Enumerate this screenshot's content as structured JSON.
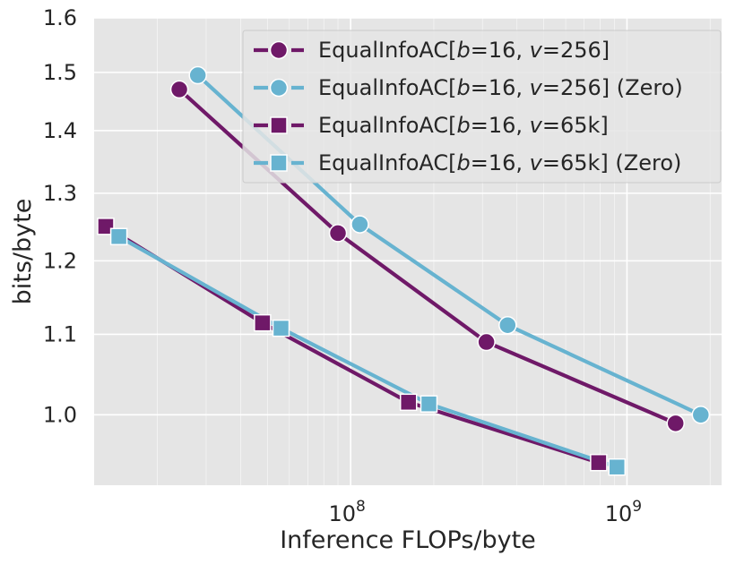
{
  "chart_data": {
    "type": "line",
    "title": "",
    "xlabel": "Inference FLOPs/byte",
    "ylabel": "bits/byte",
    "xscale": "log",
    "yscale": "log",
    "xlim": [
      11800000,
      2200000000
    ],
    "ylim": [
      0.92,
      1.6
    ],
    "x_ticks": [
      {
        "value": 100000000,
        "base": "10",
        "exp": "8"
      },
      {
        "value": 1000000000,
        "base": "10",
        "exp": "9"
      }
    ],
    "y_ticks": [
      {
        "value": 1.0,
        "label": "1.0"
      },
      {
        "value": 1.1,
        "label": "1.1"
      },
      {
        "value": 1.2,
        "label": "1.2"
      },
      {
        "value": 1.3,
        "label": "1.3"
      },
      {
        "value": 1.4,
        "label": "1.4"
      },
      {
        "value": 1.5,
        "label": "1.5"
      },
      {
        "value": 1.6,
        "label": "1.6"
      }
    ],
    "grid": true,
    "legend_position": "top-right",
    "series": [
      {
        "name": "EqualInfoAC[b=16, v=256]",
        "legend": {
          "prefix": "EqualInfoAC[",
          "b": "b",
          "b_val": "=16, ",
          "v": "v",
          "v_val": "=256]",
          "suffix": ""
        },
        "color": "#6f1968",
        "marker": "circle",
        "points": [
          {
            "x": 24000000,
            "y": 1.47
          },
          {
            "x": 90000000,
            "y": 1.24
          },
          {
            "x": 310000000,
            "y": 1.09
          },
          {
            "x": 1500000000,
            "y": 0.99
          }
        ]
      },
      {
        "name": "EqualInfoAC[b=16, v=256] (Zero)",
        "legend": {
          "prefix": "EqualInfoAC[",
          "b": "b",
          "b_val": "=16, ",
          "v": "v",
          "v_val": "=256]",
          "suffix": " (Zero)"
        },
        "color": "#67b3d0",
        "marker": "circle",
        "points": [
          {
            "x": 28000000,
            "y": 1.495
          },
          {
            "x": 108000000,
            "y": 1.253
          },
          {
            "x": 370000000,
            "y": 1.112
          },
          {
            "x": 1850000000,
            "y": 1.0
          }
        ]
      },
      {
        "name": "EqualInfoAC[b=16, v=65k]",
        "legend": {
          "prefix": "EqualInfoAC[",
          "b": "b",
          "b_val": "=16, ",
          "v": "v",
          "v_val": "=65k]",
          "suffix": ""
        },
        "color": "#6f1968",
        "marker": "square",
        "points": [
          {
            "x": 13000000,
            "y": 1.25
          },
          {
            "x": 48000000,
            "y": 1.115
          },
          {
            "x": 162000000,
            "y": 1.015
          },
          {
            "x": 790000000,
            "y": 0.945
          }
        ]
      },
      {
        "name": "EqualInfoAC[b=16, v=65k] (Zero)",
        "legend": {
          "prefix": "EqualInfoAC[",
          "b": "b",
          "b_val": "=16, ",
          "v": "v",
          "v_val": "=65k]",
          "suffix": " (Zero)"
        },
        "color": "#67b3d0",
        "marker": "square",
        "points": [
          {
            "x": 14500000,
            "y": 1.235
          },
          {
            "x": 56000000,
            "y": 1.108
          },
          {
            "x": 192000000,
            "y": 1.013
          },
          {
            "x": 920000000,
            "y": 0.94
          }
        ]
      }
    ]
  }
}
